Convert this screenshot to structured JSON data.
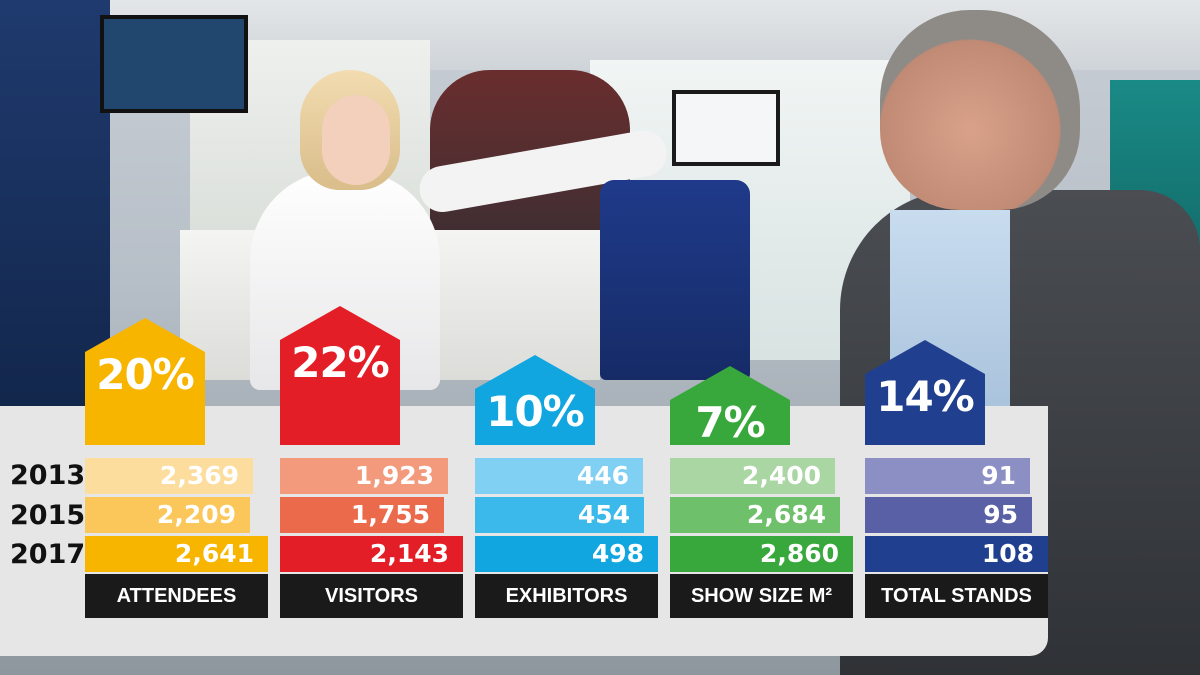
{
  "chart_data": {
    "type": "bar",
    "orientation": "horizontal",
    "categories": [
      "ATTENDEES",
      "VISITORS",
      "EXHIBITORS",
      "SHOW SIZE M²",
      "TOTAL STANDS"
    ],
    "years": [
      "2013",
      "2015",
      "2017"
    ],
    "panels": [
      {
        "label": "ATTENDEES",
        "growth": "20%",
        "color": "#f7b500",
        "values": [
          2369,
          2209,
          2641
        ],
        "value_labels": [
          "2,369",
          "2,209",
          "2,641"
        ],
        "shades": [
          "#fddd9e",
          "#fbc75a",
          "#f7b500"
        ]
      },
      {
        "label": "VISITORS",
        "growth": "22%",
        "color": "#e31e26",
        "values": [
          1923,
          1755,
          2143
        ],
        "value_labels": [
          "1,923",
          "1,755",
          "2,143"
        ],
        "shades": [
          "#f39a7c",
          "#ec6a4c",
          "#e31e26"
        ]
      },
      {
        "label": "EXHIBITORS",
        "growth": "10%",
        "color": "#11a6e0",
        "values": [
          446,
          454,
          498
        ],
        "value_labels": [
          "446",
          "454",
          "498"
        ],
        "shades": [
          "#7fd0f2",
          "#3cb9eb",
          "#11a6e0"
        ]
      },
      {
        "label": "SHOW SIZE M²",
        "growth": "7%",
        "color": "#38a83c",
        "values": [
          2400,
          2684,
          2860
        ],
        "value_labels": [
          "2,400",
          "2,684",
          "2,860"
        ],
        "shades": [
          "#a9d6a3",
          "#6fc06b",
          "#38a83c"
        ]
      },
      {
        "label": "TOTAL STANDS",
        "growth": "14%",
        "color": "#203f8e",
        "values": [
          91,
          95,
          108
        ],
        "value_labels": [
          "91",
          "95",
          "108"
        ],
        "shades": [
          "#8c8fc4",
          "#5a60a6",
          "#203f8e"
        ]
      }
    ]
  }
}
